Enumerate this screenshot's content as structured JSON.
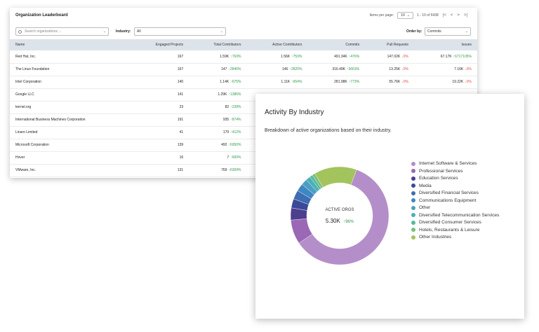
{
  "leaderboard": {
    "title": "Organization Leaderboard",
    "pager": {
      "label": "Items per page:",
      "per_page": "10",
      "range": "1 - 10 of 6438"
    },
    "search_placeholder": "Search organizations ...",
    "industry_label": "Industry:",
    "industry_value": "All",
    "order_label": "Order by:",
    "order_value": "Commits",
    "columns": [
      "Name",
      "Engaged Projects",
      "Total Contributors",
      "Active Contributors",
      "Commits",
      "Pull Requests",
      "Issues"
    ],
    "rows": [
      {
        "name": "Red Hat, Inc.",
        "projects": "167",
        "total": "1.59K",
        "total_d": "↑763%",
        "active": "1.56K",
        "active_d": "↑753%",
        "commits": "491.34K",
        "commits_d": "↑476%",
        "pr": "147.02K",
        "pr_d": "↓0%",
        "issues": "67.17K",
        "issues_d": "↑6717105%"
      },
      {
        "name": "The Linux Foundation",
        "projects": "167",
        "total": "147",
        "total_d": "↑2840%",
        "active": "146",
        "active_d": "↑2820%",
        "commits": "316.49K",
        "commits_d": "↑3663%",
        "pr": "13.25K",
        "pr_d": "↓0%",
        "issues": "7.16K",
        "issues_d": "↓0%"
      },
      {
        "name": "Intel Corporation",
        "projects": "140",
        "total": "1.14K",
        "total_d": "↑675%",
        "active": "1.11K",
        "active_d": "↑654%",
        "commits": "281.98K",
        "commits_d": "↑773%",
        "pr": "55.76K",
        "pr_d": "↓0%",
        "issues": "19.22K",
        "issues_d": "↓0%"
      },
      {
        "name": "Google LLC",
        "projects": "141",
        "total": "1.29K",
        "total_d": "↑1386%",
        "active": "",
        "active_d": "",
        "commits": "",
        "commits_d": "",
        "pr": "",
        "pr_d": "",
        "issues": "",
        "issues_d": ""
      },
      {
        "name": "kernel.org",
        "projects": "23",
        "total": "82",
        "total_d": "↑228%",
        "active": "",
        "active_d": "",
        "commits": "",
        "commits_d": "",
        "pr": "",
        "pr_d": "",
        "issues": "",
        "issues_d": ""
      },
      {
        "name": "International Business Machines Corporation",
        "projects": "191",
        "total": "935",
        "total_d": "↑874%",
        "active": "",
        "active_d": "",
        "commits": "",
        "commits_d": "",
        "pr": "",
        "pr_d": "",
        "issues": "",
        "issues_d": ""
      },
      {
        "name": "Linaro Limited",
        "projects": "41",
        "total": "179",
        "total_d": "↑412%",
        "active": "",
        "active_d": "",
        "commits": "",
        "commits_d": "",
        "pr": "",
        "pr_d": "",
        "issues": "",
        "issues_d": ""
      },
      {
        "name": "Microsoft Corporation",
        "projects": "139",
        "total": "492",
        "total_d": "↑6050%",
        "active": "",
        "active_d": "",
        "commits": "",
        "commits_d": "",
        "pr": "",
        "pr_d": "",
        "issues": "",
        "issues_d": ""
      },
      {
        "name": "Hover",
        "projects": "16",
        "total": "7",
        "total_d": "↑600%",
        "active": "",
        "active_d": "",
        "commits": "",
        "commits_d": "",
        "pr": "",
        "pr_d": "",
        "issues": "",
        "issues_d": ""
      },
      {
        "name": "VMware, Inc.",
        "projects": "131",
        "total": "769",
        "total_d": "↑6309%",
        "active": "",
        "active_d": "",
        "commits": "",
        "commits_d": "",
        "pr": "",
        "pr_d": "",
        "issues": "",
        "issues_d": ""
      }
    ]
  },
  "activity": {
    "title": "Activity By Industry",
    "subtitle": "Breakdown of active organizations based on their industry.",
    "center_label": "ACTIVE ORGS",
    "center_value": "5.30K",
    "center_delta": "↑96%",
    "legend": [
      {
        "label": "Internet Software & Services",
        "color": "#b48ec9"
      },
      {
        "label": "Professional Services",
        "color": "#9a68b5"
      },
      {
        "label": "Education Services",
        "color": "#4c3f8e"
      },
      {
        "label": "Media",
        "color": "#3a4a98"
      },
      {
        "label": "Diversified Financial Services",
        "color": "#3e6db2"
      },
      {
        "label": "Communications Equipment",
        "color": "#3f86c2"
      },
      {
        "label": "Other",
        "color": "#4b9fc4"
      },
      {
        "label": "Diversified Telecommunication Services",
        "color": "#4eaeb6"
      },
      {
        "label": "Diversified Consumer Services",
        "color": "#57b99d"
      },
      {
        "label": "Hotels, Restaurants & Leisure",
        "color": "#79bf7e"
      },
      {
        "label": "Other Industries",
        "color": "#a3c35c"
      }
    ]
  },
  "chart_data": {
    "type": "pie",
    "categories": [
      "Internet Software & Services",
      "Professional Services",
      "Education Services",
      "Media",
      "Diversified Financial Services",
      "Communications Equipment",
      "Other",
      "Diversified Telecommunication Services",
      "Diversified Consumer Services",
      "Hotels, Restaurants & Leisure",
      "Other Industries"
    ],
    "values": [
      60,
      8,
      4,
      3,
      3,
      2.5,
      2,
      1.5,
      1,
      1,
      14
    ]
  }
}
